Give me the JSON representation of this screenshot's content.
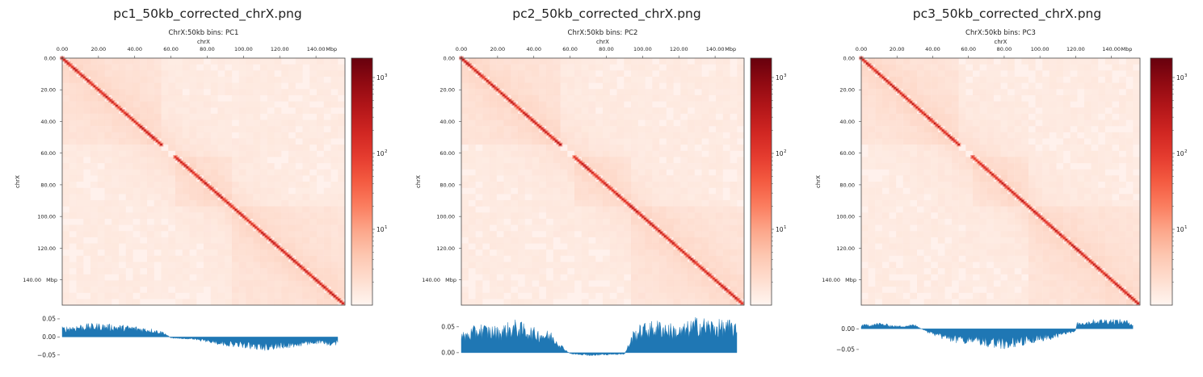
{
  "panels": [
    {
      "file_title": "pc1_50kb_corrected_chrX.png",
      "chart_data": {
        "type": "heatmap",
        "title": "ChrX:50kb bins: PC1",
        "xlabel": "chrX",
        "ylabel": "chrX",
        "x_ticks": [
          "0.00",
          "20.00",
          "40.00",
          "60.00",
          "80.00",
          "100.00",
          "120.00",
          "140.00"
        ],
        "y_ticks": [
          "0.00",
          "20.00",
          "40.00",
          "60.00",
          "80.00",
          "100.00",
          "120.00",
          "140.00"
        ],
        "x_tick_values": [
          0,
          20,
          40,
          60,
          80,
          100,
          120,
          140
        ],
        "y_tick_values": [
          0,
          20,
          40,
          60,
          80,
          100,
          120,
          140
        ],
        "axis_unit": "Mbp",
        "axis_range": [
          0,
          156
        ],
        "colorbar": {
          "scale": "log",
          "range": [
            1,
            1800
          ],
          "ticks": [
            10,
            100,
            1000
          ],
          "tick_labels": [
            "10",
            "10",
            "10"
          ],
          "tick_exponents": [
            "1",
            "2",
            "3"
          ],
          "colormap": "Reds"
        },
        "track": {
          "type": "area",
          "y_ticks": [
            "0.05",
            "0.00",
            "−0.05"
          ],
          "y_tick_values": [
            0.05,
            0.0,
            -0.05
          ],
          "ylim": [
            -0.055,
            0.07
          ],
          "x": [
            0,
            10,
            20,
            30,
            40,
            50,
            56,
            60,
            70,
            80,
            90,
            100,
            110,
            120,
            130,
            140,
            150,
            152
          ],
          "values": [
            0.022,
            0.028,
            0.03,
            0.027,
            0.024,
            0.018,
            0.012,
            -0.003,
            -0.005,
            -0.012,
            -0.02,
            -0.024,
            -0.03,
            -0.026,
            -0.022,
            -0.015,
            -0.02,
            -0.015
          ]
        }
      }
    },
    {
      "file_title": "pc2_50kb_corrected_chrX.png",
      "chart_data": {
        "type": "heatmap",
        "title": "ChrX:50kb bins: PC2",
        "xlabel": "chrX",
        "ylabel": "chrX",
        "x_ticks": [
          "0.00",
          "20.00",
          "40.00",
          "60.00",
          "80.00",
          "100.00",
          "120.00",
          "140.00"
        ],
        "y_ticks": [
          "0.00",
          "20.00",
          "40.00",
          "60.00",
          "80.00",
          "100.00",
          "120.00",
          "140.00"
        ],
        "x_tick_values": [
          0,
          20,
          40,
          60,
          80,
          100,
          120,
          140
        ],
        "y_tick_values": [
          0,
          20,
          40,
          60,
          80,
          100,
          120,
          140
        ],
        "axis_unit": "Mbp",
        "axis_range": [
          0,
          156
        ],
        "colorbar": {
          "scale": "log",
          "range": [
            1,
            1800
          ],
          "ticks": [
            10,
            100,
            1000
          ],
          "tick_labels": [
            "10",
            "10",
            "10"
          ],
          "tick_exponents": [
            "1",
            "2",
            "3"
          ],
          "colormap": "Reds"
        },
        "track": {
          "type": "area",
          "y_ticks": [
            "0.05",
            "0.00"
          ],
          "y_tick_values": [
            0.05,
            0.0
          ],
          "ylim": [
            -0.008,
            0.07
          ],
          "x": [
            0,
            10,
            20,
            30,
            40,
            50,
            56,
            60,
            70,
            80,
            90,
            95,
            100,
            110,
            120,
            130,
            140,
            150,
            152
          ],
          "values": [
            0.03,
            0.045,
            0.04,
            0.05,
            0.038,
            0.032,
            0.01,
            -0.002,
            -0.005,
            -0.004,
            -0.003,
            0.035,
            0.045,
            0.05,
            0.04,
            0.055,
            0.05,
            0.05,
            0.04
          ]
        }
      }
    },
    {
      "file_title": "pc3_50kb_corrected_chrX.png",
      "chart_data": {
        "type": "heatmap",
        "title": "ChrX:50kb bins: PC3",
        "xlabel": "chrX",
        "ylabel": "chrX",
        "x_ticks": [
          "0.00",
          "20.00",
          "40.00",
          "60.00",
          "80.00",
          "100.00",
          "120.00",
          "140.00"
        ],
        "y_ticks": [
          "0.00",
          "20.00",
          "40.00",
          "60.00",
          "80.00",
          "100.00",
          "120.00",
          "140.00"
        ],
        "x_tick_values": [
          0,
          20,
          40,
          60,
          80,
          100,
          120,
          140
        ],
        "y_tick_values": [
          0,
          20,
          40,
          60,
          80,
          100,
          120,
          140
        ],
        "axis_unit": "Mbp",
        "axis_range": [
          0,
          156
        ],
        "colorbar": {
          "scale": "log",
          "range": [
            1,
            1800
          ],
          "ticks": [
            10,
            100,
            1000
          ],
          "tick_labels": [
            "10",
            "10",
            "10"
          ],
          "tick_exponents": [
            "1",
            "2",
            "3"
          ],
          "colormap": "Reds"
        },
        "track": {
          "type": "area",
          "y_ticks": [
            "0.00",
            "−0.05"
          ],
          "y_tick_values": [
            0.0,
            -0.05
          ],
          "ylim": [
            -0.06,
            0.03
          ],
          "x": [
            0,
            10,
            20,
            30,
            36,
            40,
            50,
            60,
            70,
            80,
            90,
            100,
            110,
            120,
            120.5,
            130,
            140,
            150,
            152
          ],
          "values": [
            0.008,
            0.012,
            0.006,
            0.009,
            -0.005,
            -0.015,
            -0.025,
            -0.03,
            -0.035,
            -0.04,
            -0.032,
            -0.025,
            -0.018,
            -0.005,
            0.012,
            0.018,
            0.02,
            0.016,
            0.01
          ]
        }
      }
    }
  ]
}
